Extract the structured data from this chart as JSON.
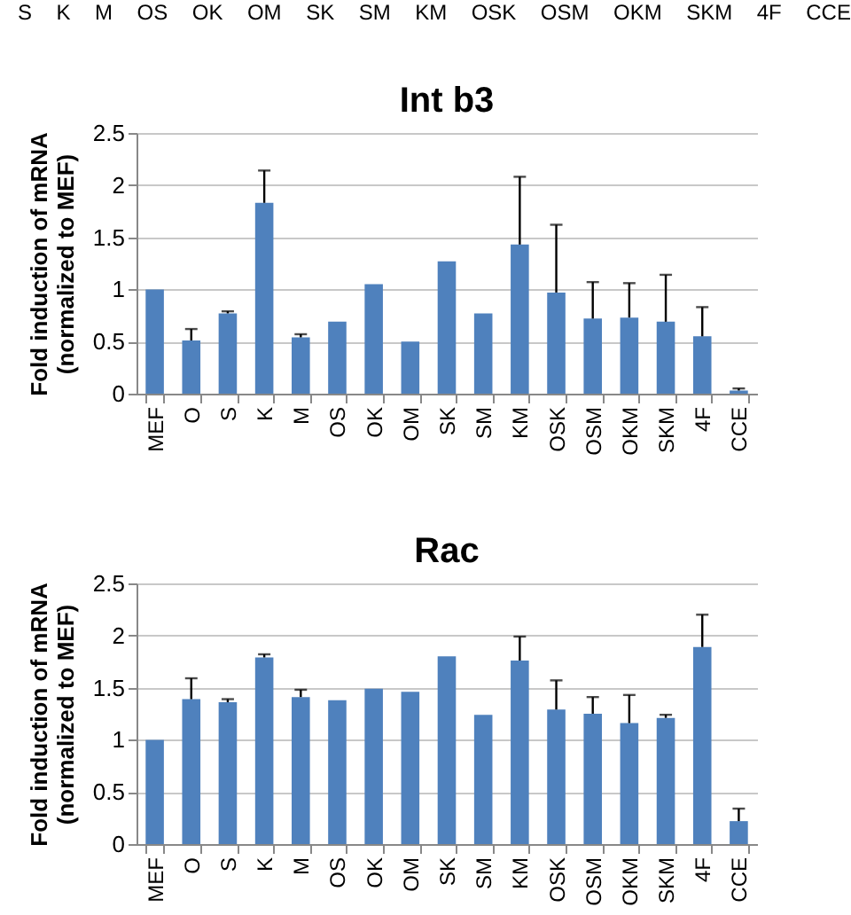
{
  "chart_data": [
    {
      "type": "other",
      "annotations": [
        "S",
        "K",
        "M",
        "OS",
        "OK",
        "OM",
        "SK",
        "SM",
        "KM",
        "OSK",
        "OSM",
        "OKM",
        "SKM",
        "4F",
        "CCE"
      ]
    },
    {
      "type": "bar",
      "title": "Int b3",
      "ylabel": "Fold induction of  mRNA\n(normalized to MEF)",
      "categories": [
        "MEF",
        "O",
        "S",
        "K",
        "M",
        "OS",
        "OK",
        "OM",
        "SK",
        "SM",
        "KM",
        "OSK",
        "OSM",
        "OKM",
        "SKM",
        "4F",
        "CCE"
      ],
      "values": [
        1.0,
        0.51,
        0.77,
        1.83,
        0.54,
        0.69,
        1.05,
        0.5,
        1.27,
        0.77,
        1.43,
        0.97,
        0.72,
        0.73,
        0.69,
        0.55,
        0.03
      ],
      "errors": [
        null,
        [
          0.51,
          0.62
        ],
        [
          0.77,
          0.79
        ],
        [
          1.83,
          2.14
        ],
        [
          0.54,
          0.57
        ],
        null,
        null,
        null,
        null,
        null,
        [
          1.43,
          2.08
        ],
        [
          0.97,
          1.62
        ],
        [
          0.72,
          1.07
        ],
        [
          0.73,
          1.06
        ],
        [
          0.69,
          1.14
        ],
        [
          0.55,
          0.83
        ],
        [
          0.03,
          0.05
        ]
      ],
      "color": "#4f81bd",
      "ylim": [
        0,
        2.5
      ],
      "yticks": [
        0,
        0.5,
        1,
        1.5,
        2,
        2.5
      ],
      "grid": "y"
    },
    {
      "type": "bar",
      "title": "Rac",
      "ylabel": "Fold induction of  mRNA\n(normalized to MEF)",
      "categories": [
        "MEF",
        "O",
        "S",
        "K",
        "M",
        "OS",
        "OK",
        "OM",
        "SK",
        "SM",
        "KM",
        "OSK",
        "OSM",
        "OKM",
        "SKM",
        "4F",
        "CCE"
      ],
      "values": [
        1.0,
        1.39,
        1.36,
        1.79,
        1.41,
        1.38,
        1.49,
        1.46,
        1.8,
        1.24,
        1.76,
        1.29,
        1.25,
        1.16,
        1.21,
        1.89,
        0.22
      ],
      "errors": [
        null,
        [
          1.39,
          1.59
        ],
        [
          1.36,
          1.39
        ],
        [
          1.79,
          1.82
        ],
        [
          1.41,
          1.48
        ],
        null,
        null,
        null,
        null,
        null,
        [
          1.76,
          1.99
        ],
        [
          1.29,
          1.57
        ],
        [
          1.25,
          1.41
        ],
        [
          1.16,
          1.43
        ],
        [
          1.21,
          1.24
        ],
        [
          1.89,
          2.2
        ],
        [
          0.22,
          0.34
        ]
      ],
      "color": "#4f81bd",
      "ylim": [
        0,
        2.5
      ],
      "yticks": [
        0,
        0.5,
        1,
        1.5,
        2,
        2.5
      ],
      "grid": "y"
    }
  ]
}
